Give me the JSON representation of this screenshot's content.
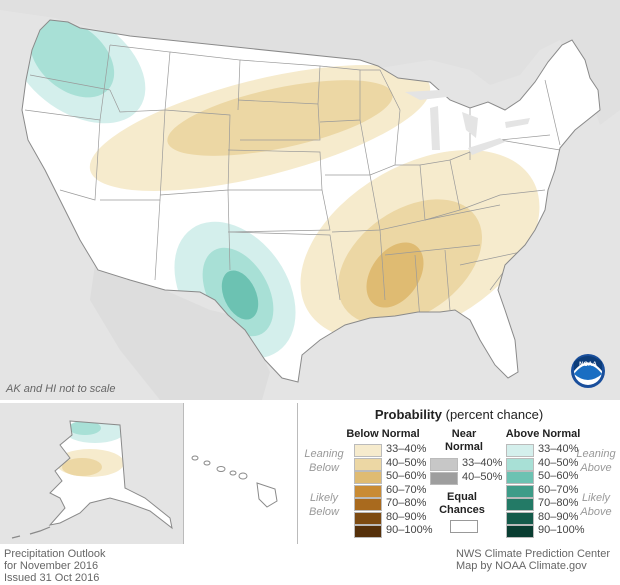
{
  "map": {
    "type": "precipitation-outlook",
    "land_color": "#ffffff",
    "outside_color": "#e4e4e4",
    "border_color": "#9a9a9a"
  },
  "note": "AK and HI not to scale",
  "legend": {
    "title_bold": "Probability",
    "title_rest": " (percent chance)",
    "below_header": "Below Normal",
    "near_header": "Near Normal",
    "above_header": "Above Normal",
    "leaning_below": "Leaning Below",
    "likely_below": "Likely Below",
    "leaning_above": "Leaning Above",
    "likely_above": "Likely Above",
    "equal_chances": "Equal Chances",
    "below": [
      {
        "range": "33–40%",
        "color": "#f6ebcd"
      },
      {
        "range": "40–50%",
        "color": "#ecd7a4"
      },
      {
        "range": "50–60%",
        "color": "#dfbb72"
      },
      {
        "range": "60–70%",
        "color": "#c98b34"
      },
      {
        "range": "70–80%",
        "color": "#a96a1e"
      },
      {
        "range": "80–90%",
        "color": "#7d4b12"
      },
      {
        "range": "90–100%",
        "color": "#55300a"
      }
    ],
    "near": [
      {
        "range": "33–40%",
        "color": "#c7c7c7"
      },
      {
        "range": "40–50%",
        "color": "#9e9e9e"
      }
    ],
    "above": [
      {
        "range": "33–40%",
        "color": "#d4efec"
      },
      {
        "range": "40–50%",
        "color": "#a8e0d6"
      },
      {
        "range": "50–60%",
        "color": "#6cc2b2"
      },
      {
        "range": "60–70%",
        "color": "#3e9c88"
      },
      {
        "range": "70–80%",
        "color": "#237a66"
      },
      {
        "range": "80–90%",
        "color": "#145b4b"
      },
      {
        "range": "90–100%",
        "color": "#093d31"
      }
    ]
  },
  "footer": {
    "left": [
      "Precipitation Outlook",
      "for November 2016",
      "Issued 31 Oct 2016"
    ],
    "right": [
      "NWS Climate Prediction Center",
      "Map by NOAA Climate.gov"
    ]
  },
  "logo_text": "NOAA"
}
